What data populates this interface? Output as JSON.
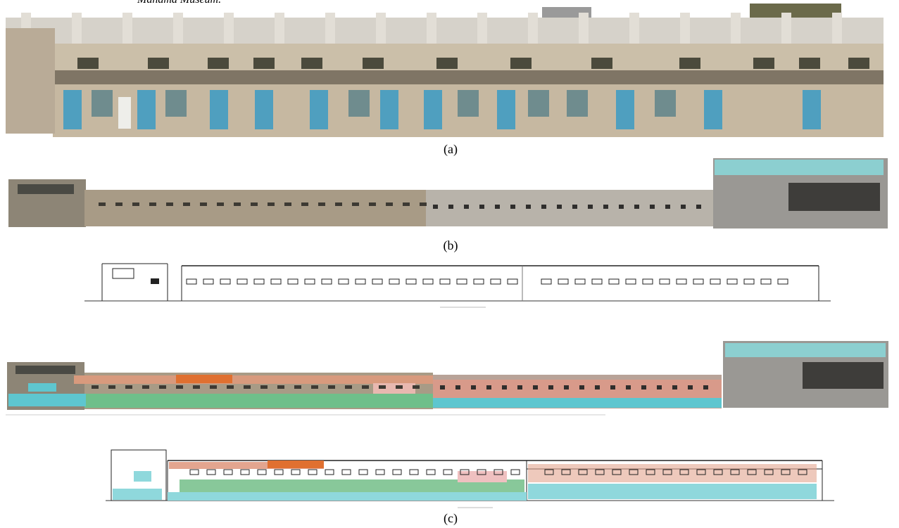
{
  "header": {
    "title": "Manama Museum."
  },
  "captions": [
    "(a)",
    "(b)",
    "(c)"
  ]
}
